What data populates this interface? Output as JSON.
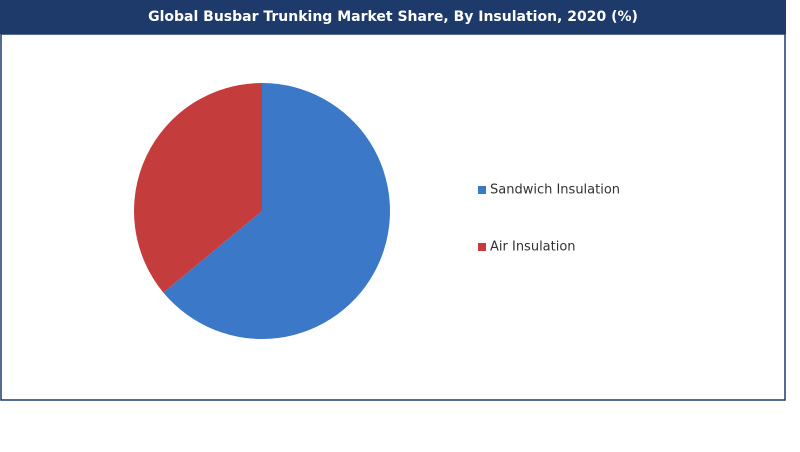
{
  "chart_data": {
    "type": "pie",
    "title": "Global Busbar Trunking Market Share, By Insulation, 2020 (%)",
    "categories": [
      "Sandwich Insulation",
      "Air Insulation"
    ],
    "values": [
      64,
      36
    ],
    "colors": [
      "#3b78c8",
      "#c43c3c"
    ],
    "legend": "right"
  }
}
